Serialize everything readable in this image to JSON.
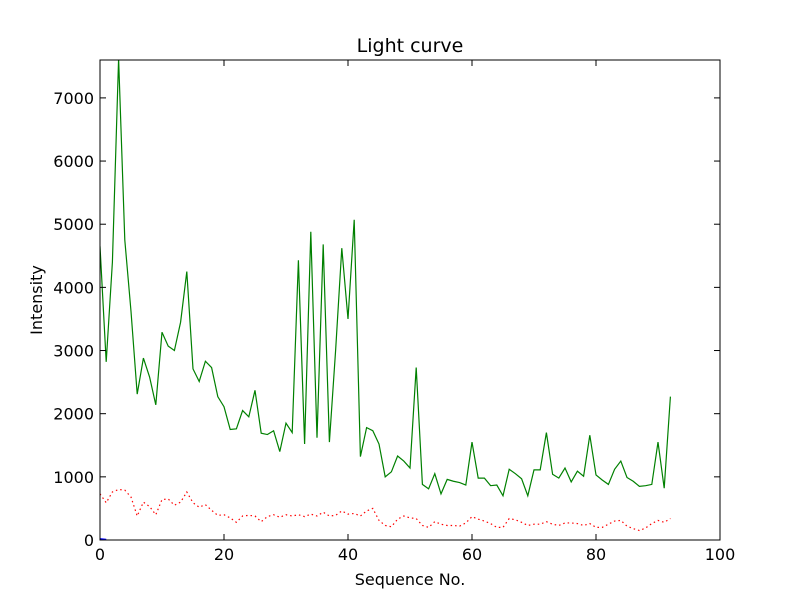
{
  "chart_data": {
    "type": "line",
    "title": "Light curve",
    "xlabel": "Sequence No.",
    "ylabel": "Intensity",
    "xlim": [
      0,
      100
    ],
    "ylim": [
      0,
      7600
    ],
    "xticks": [
      0,
      20,
      40,
      60,
      80,
      100
    ],
    "yticks": [
      0,
      1000,
      2000,
      3000,
      4000,
      5000,
      6000,
      7000
    ],
    "grid": false,
    "series": [
      {
        "color": "#008000",
        "style": "solid",
        "x": [
          0,
          1,
          2,
          3,
          4,
          5,
          6,
          7,
          8,
          9,
          10,
          11,
          12,
          13,
          14,
          15,
          16,
          17,
          18,
          19,
          20,
          21,
          22,
          23,
          24,
          25,
          26,
          27,
          28,
          29,
          30,
          31,
          32,
          33,
          34,
          35,
          36,
          37,
          38,
          39,
          40,
          41,
          42,
          43,
          44,
          45,
          46,
          47,
          48,
          49,
          50,
          51,
          52,
          53,
          54,
          55,
          56,
          57,
          58,
          59,
          60,
          61,
          62,
          63,
          64,
          65,
          66,
          67,
          68,
          69,
          70,
          71,
          72,
          73,
          74,
          75,
          76,
          77,
          78,
          79,
          80,
          81,
          82,
          83,
          84,
          85,
          86,
          87,
          88,
          89,
          90,
          91,
          92
        ],
        "y": [
          4650,
          2820,
          4400,
          7620,
          4750,
          3620,
          2310,
          2880,
          2580,
          2140,
          3290,
          3070,
          3000,
          3450,
          4250,
          2710,
          2510,
          2830,
          2730,
          2270,
          2110,
          1750,
          1760,
          2050,
          1950,
          2370,
          1690,
          1670,
          1730,
          1400,
          1850,
          1700,
          4430,
          1520,
          4880,
          1620,
          4680,
          1550,
          3000,
          4620,
          3500,
          5070,
          1320,
          1780,
          1730,
          1520,
          1000,
          1080,
          1330,
          1250,
          1140,
          2730,
          880,
          810,
          1050,
          730,
          960,
          930,
          910,
          870,
          1550,
          980,
          980,
          860,
          870,
          700,
          1120,
          1050,
          970,
          700,
          1110,
          1110,
          1700,
          1040,
          980,
          1140,
          920,
          1090,
          1010,
          1660,
          1030,
          950,
          880,
          1120,
          1250,
          990,
          930,
          850,
          860,
          880,
          1550,
          820,
          2270
        ]
      },
      {
        "color": "#ff0000",
        "style": "dotted",
        "x": [
          0,
          1,
          2,
          3,
          4,
          5,
          6,
          7,
          8,
          9,
          10,
          11,
          12,
          13,
          14,
          15,
          16,
          17,
          18,
          19,
          20,
          21,
          22,
          23,
          24,
          25,
          26,
          27,
          28,
          29,
          30,
          31,
          32,
          33,
          34,
          35,
          36,
          37,
          38,
          39,
          40,
          41,
          42,
          43,
          44,
          45,
          46,
          47,
          48,
          49,
          50,
          51,
          52,
          53,
          54,
          55,
          56,
          57,
          58,
          59,
          60,
          61,
          62,
          63,
          64,
          65,
          66,
          67,
          68,
          69,
          70,
          71,
          72,
          73,
          74,
          75,
          76,
          77,
          78,
          79,
          80,
          81,
          82,
          83,
          84,
          85,
          86,
          87,
          88,
          89,
          90,
          91,
          92
        ],
        "y": [
          730,
          590,
          760,
          800,
          790,
          680,
          380,
          600,
          530,
          400,
          640,
          650,
          550,
          600,
          760,
          590,
          520,
          560,
          470,
          390,
          400,
          350,
          280,
          380,
          390,
          380,
          290,
          370,
          400,
          360,
          400,
          380,
          400,
          370,
          410,
          380,
          440,
          380,
          390,
          460,
          410,
          420,
          380,
          460,
          500,
          310,
          230,
          210,
          330,
          380,
          350,
          340,
          230,
          200,
          290,
          250,
          230,
          230,
          220,
          270,
          370,
          330,
          300,
          260,
          200,
          200,
          340,
          320,
          280,
          230,
          250,
          250,
          290,
          250,
          230,
          270,
          270,
          260,
          230,
          260,
          200,
          200,
          250,
          300,
          310,
          220,
          180,
          150,
          190,
          260,
          310,
          280,
          340
        ]
      },
      {
        "color": "#0000ff",
        "style": "solid",
        "x": [
          0,
          1
        ],
        "y": [
          10,
          0
        ]
      }
    ]
  }
}
